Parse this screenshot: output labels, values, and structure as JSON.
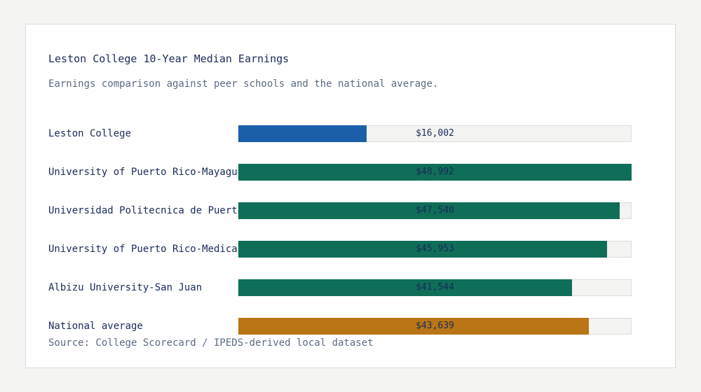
{
  "chart_data": {
    "type": "bar",
    "orientation": "horizontal",
    "title": "Leston College 10-Year Median Earnings",
    "subtitle": "Earnings comparison against peer schools and the national average.",
    "source": "Source: College Scorecard / IPEDS-derived local dataset",
    "xlim": [
      0,
      48992
    ],
    "categories": [
      "Leston College",
      "University of Puerto Rico-Mayaguez",
      "Universidad Politecnica de Puerto Rico",
      "University of Puerto Rico-Medical Sciences",
      "Albizu University-San Juan",
      "National average"
    ],
    "values": [
      16002,
      48992,
      47540,
      45953,
      41544,
      43639
    ],
    "value_labels": [
      "$16,002",
      "$48,992",
      "$47,540",
      "$45,953",
      "$41,544",
      "$43,639"
    ],
    "colors": [
      "#1b5fa8",
      "#0f6e58",
      "#0f6e58",
      "#0f6e58",
      "#0f6e58",
      "#b97516"
    ]
  }
}
